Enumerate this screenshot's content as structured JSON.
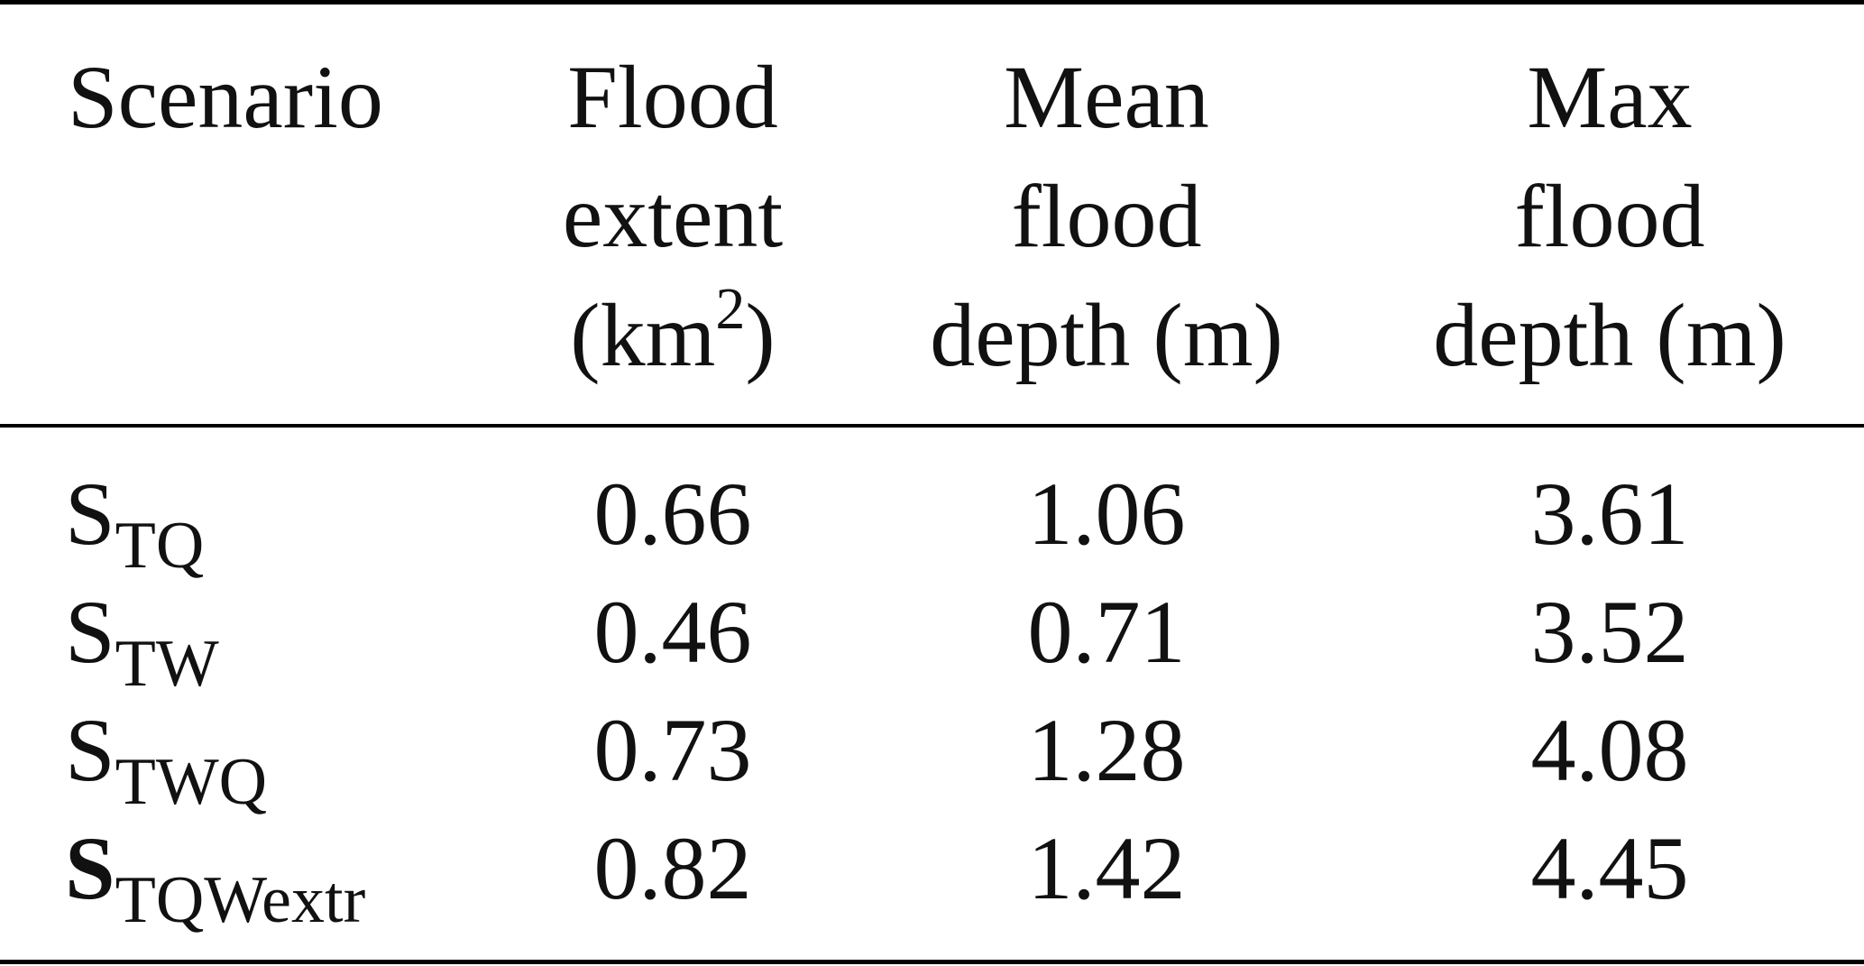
{
  "header": {
    "scenario": "Scenario",
    "flood_extent": [
      "Flood",
      "extent",
      "(km",
      "2",
      ")"
    ],
    "mean_depth": [
      "Mean",
      "flood",
      "depth (m)"
    ],
    "max_depth": [
      "Max",
      "flood",
      "depth (m)"
    ]
  },
  "rows": [
    {
      "scenario_main": "S",
      "scenario_sub": "TQ",
      "extent": "0.66",
      "mean": "1.06",
      "max": "3.61",
      "bold": false
    },
    {
      "scenario_main": "S",
      "scenario_sub": "TW",
      "extent": "0.46",
      "mean": "0.71",
      "max": "3.52",
      "bold": false
    },
    {
      "scenario_main": "S",
      "scenario_sub": "TWQ",
      "extent": "0.73",
      "mean": "1.28",
      "max": "4.08",
      "bold": false
    },
    {
      "scenario_main": "S",
      "scenario_sub": "TQWextr",
      "extent": "0.82",
      "mean": "1.42",
      "max": "4.45",
      "bold": true
    }
  ]
}
